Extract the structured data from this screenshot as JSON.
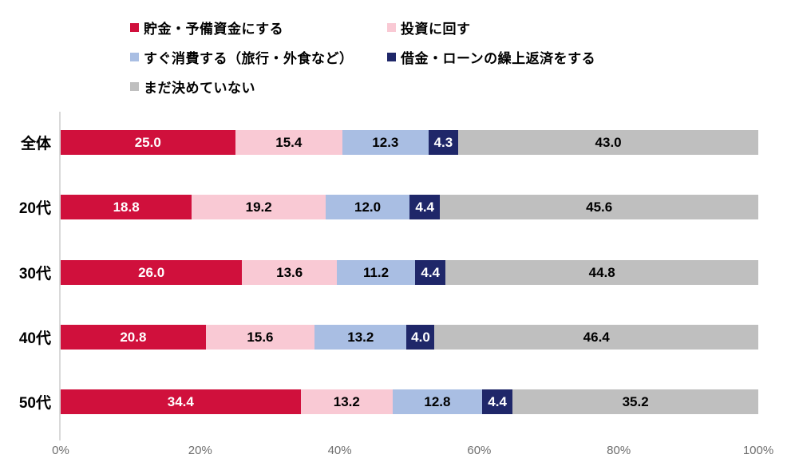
{
  "colors": {
    "series": [
      "#D0103C",
      "#F9C9D4",
      "#A9BEE3",
      "#1F2769",
      "#BFBFBF"
    ],
    "value_label_colors": [
      "#FFFFFF",
      "#000000",
      "#000000",
      "#FFFFFF",
      "#000000"
    ],
    "axis_line": "#D9D9D9",
    "axis_text": "#6E6E6E",
    "category_text": "#000000",
    "legend_text": "#000000",
    "background": "#FFFFFF"
  },
  "legend": {
    "items": [
      {
        "label": "貯金・予備資金にする",
        "color": "#D0103C"
      },
      {
        "label": "投資に回す",
        "color": "#F9C9D4"
      },
      {
        "label": "すぐ消費する（旅行・外食など）",
        "color": "#A9BEE3"
      },
      {
        "label": "借金・ローンの繰上返済をする",
        "color": "#1F2769"
      },
      {
        "label": "まだ決めていない",
        "color": "#BFBFBF"
      }
    ]
  },
  "chart_data": {
    "type": "bar",
    "orientation": "horizontal",
    "stacked": true,
    "title": "",
    "xlabel": "",
    "ylabel": "",
    "xlim": [
      0,
      100
    ],
    "unit": "%",
    "grid": false,
    "legend_position": "top",
    "x_ticks": [
      "0%",
      "20%",
      "40%",
      "60%",
      "80%",
      "100%"
    ],
    "categories": [
      "全体",
      "20代",
      "30代",
      "40代",
      "50代"
    ],
    "series": [
      {
        "name": "貯金・予備資金にする",
        "color": "#D0103C",
        "values": [
          25.0,
          18.8,
          26.0,
          20.8,
          34.4
        ]
      },
      {
        "name": "投資に回す",
        "color": "#F9C9D4",
        "values": [
          15.4,
          19.2,
          13.6,
          15.6,
          13.2
        ]
      },
      {
        "name": "すぐ消費する（旅行・外食など）",
        "color": "#A9BEE3",
        "values": [
          12.3,
          12.0,
          11.2,
          13.2,
          12.8
        ]
      },
      {
        "name": "借金・ローンの繰上返済をする",
        "color": "#1F2769",
        "values": [
          4.3,
          4.4,
          4.4,
          4.0,
          4.4
        ]
      },
      {
        "name": "まだ決めていない",
        "color": "#BFBFBF",
        "values": [
          43.0,
          45.6,
          44.8,
          46.4,
          35.2
        ]
      }
    ]
  },
  "layout_numbers": {
    "value_decimals": 1
  }
}
